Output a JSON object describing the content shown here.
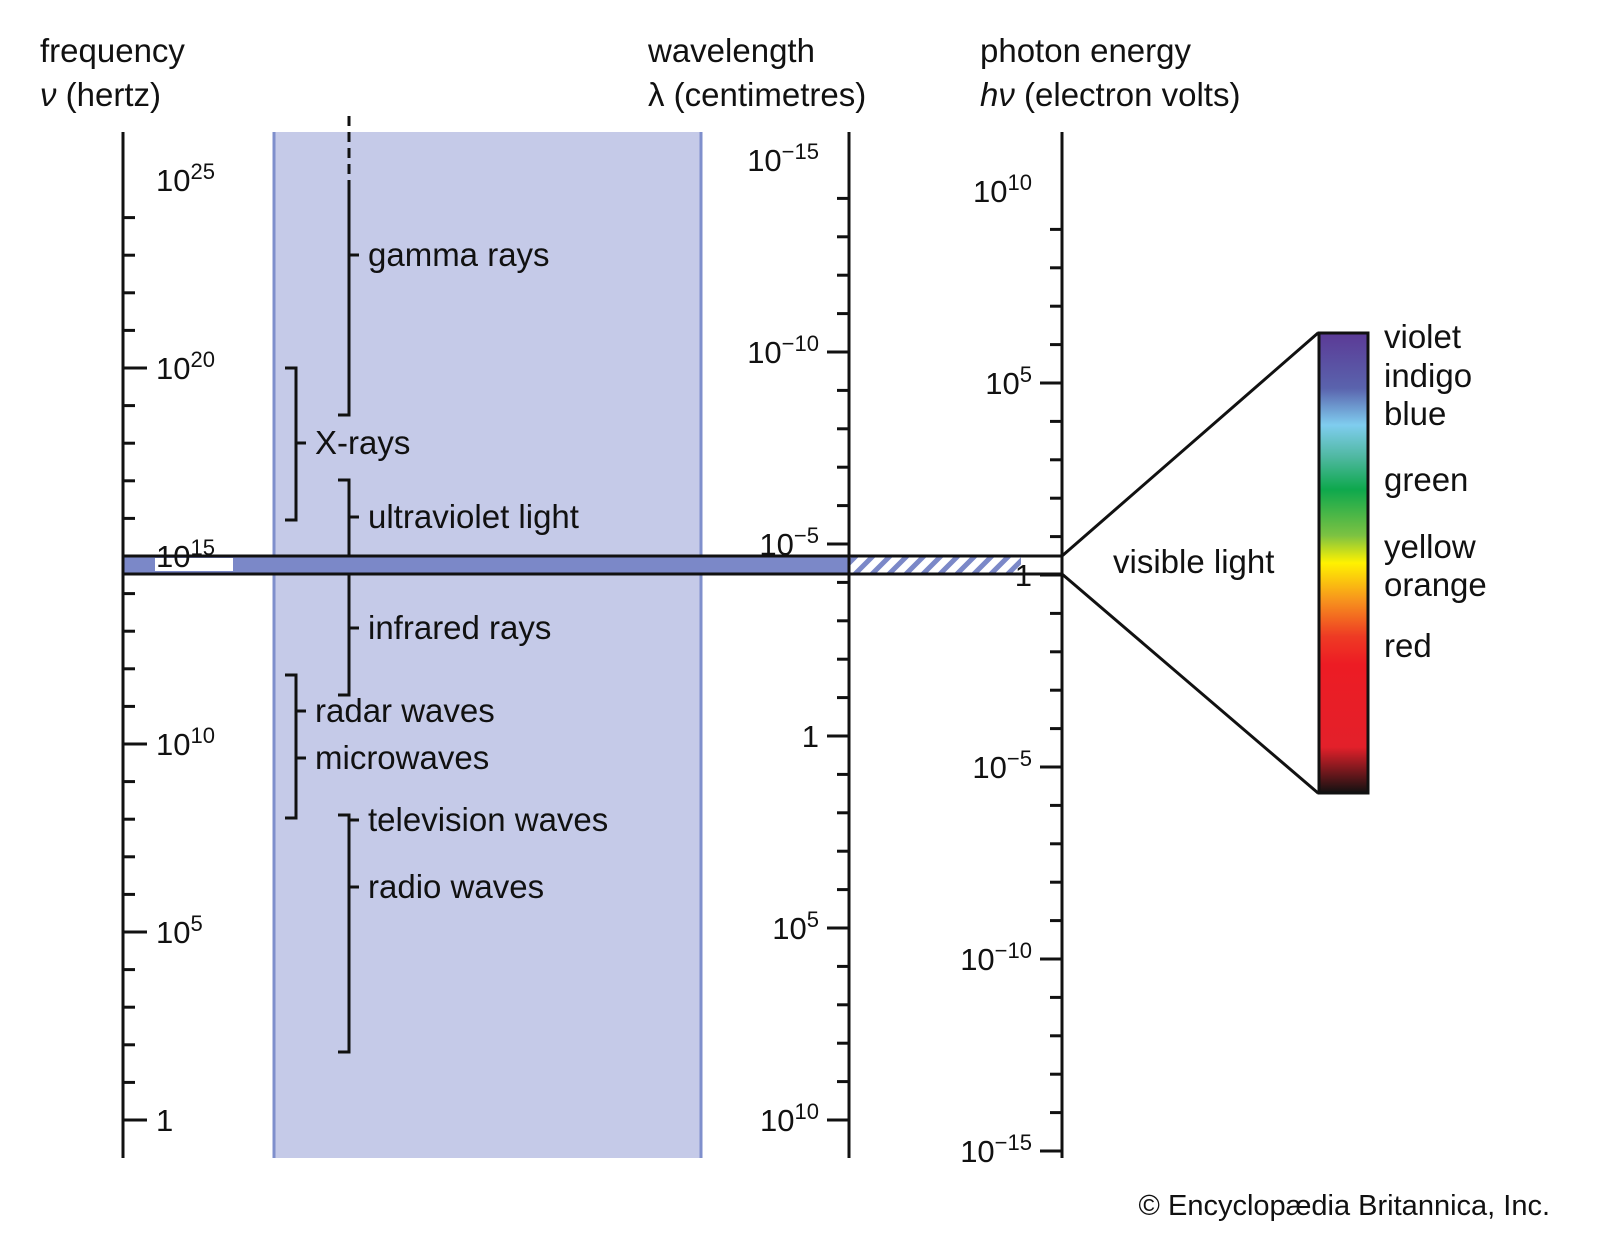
{
  "headers": {
    "frequency": {
      "line1": "frequency",
      "symbol": "ν",
      "unit": " (hertz)"
    },
    "wavelength": {
      "line1": "wavelength",
      "symbol": "λ",
      "unit": " (centimetres)"
    },
    "energy": {
      "line1": "photon energy",
      "symbol": "hν",
      "unit": " (electron volts)"
    }
  },
  "frequency_ticks": [
    {
      "base": "10",
      "exp": "25"
    },
    {
      "base": "10",
      "exp": "20"
    },
    {
      "base": "10",
      "exp": "15"
    },
    {
      "base": "10",
      "exp": "10"
    },
    {
      "base": "10",
      "exp": "5"
    },
    {
      "base": "1",
      "exp": ""
    }
  ],
  "wavelength_ticks": [
    {
      "base": "10",
      "exp": "−15"
    },
    {
      "base": "10",
      "exp": "−10"
    },
    {
      "base": "10",
      "exp": "−5"
    },
    {
      "base": "1",
      "exp": ""
    },
    {
      "base": "10",
      "exp": "5"
    },
    {
      "base": "10",
      "exp": "10"
    }
  ],
  "energy_ticks": [
    {
      "base": "10",
      "exp": "10"
    },
    {
      "base": "10",
      "exp": "5"
    },
    {
      "base": "1",
      "exp": ""
    },
    {
      "base": "10",
      "exp": "−5"
    },
    {
      "base": "10",
      "exp": "−10"
    },
    {
      "base": "10",
      "exp": "−15"
    }
  ],
  "bands": {
    "gamma": "gamma rays",
    "xrays": "X-rays",
    "uv": "ultraviolet light",
    "infrared": "infrared rays",
    "radar": "radar waves",
    "microwaves": "microwaves",
    "tv": "television waves",
    "radio": "radio waves",
    "visible": "visible light"
  },
  "colors": [
    "violet",
    "indigo",
    "blue",
    "green",
    "yellow",
    "orange",
    "red"
  ],
  "palette": {
    "band_fill": "#c5cae8",
    "band_edge": "#7f8fcc",
    "visible_fill": "#7b88c8"
  },
  "credit": "© Encyclopædia Britannica, Inc."
}
